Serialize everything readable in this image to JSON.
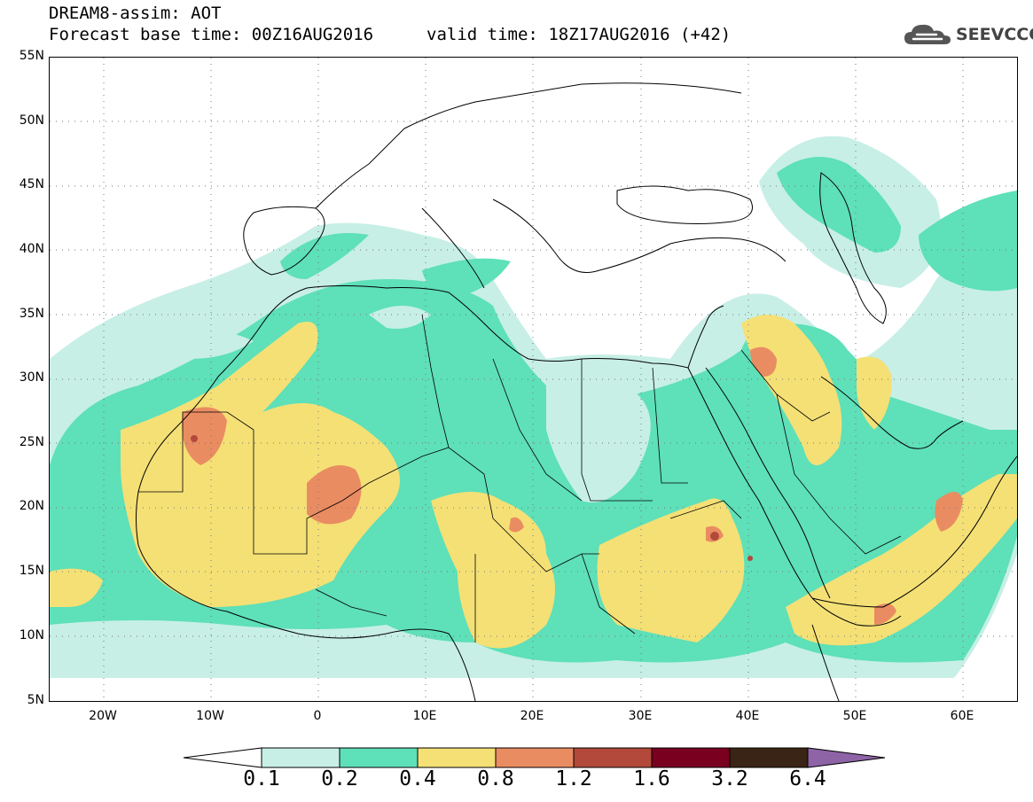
{
  "title": {
    "line1": "DREAM8-assim: AOT",
    "line2_base": "Forecast base time: 00Z16AUG2016",
    "line2_valid": "valid time: 18Z17AUG2016 (+42)"
  },
  "logo": {
    "icon": "cloud-icon",
    "text": "SEEVCCC"
  },
  "axes": {
    "lat_labels": [
      "55N",
      "50N",
      "45N",
      "40N",
      "35N",
      "30N",
      "25N",
      "20N",
      "15N",
      "10N",
      "5N"
    ],
    "lon_labels": [
      "20W",
      "10W",
      "0",
      "10E",
      "20E",
      "30E",
      "40E",
      "50E",
      "60E"
    ],
    "lat_range": [
      5,
      55
    ],
    "lon_range": [
      -25,
      65
    ],
    "grid": "dotted"
  },
  "colorbar": {
    "labels": [
      "0.1",
      "0.2",
      "0.4",
      "0.8",
      "1.2",
      "1.6",
      "3.2",
      "6.4"
    ],
    "colors": [
      "#ffffff",
      "#c7efe6",
      "#5ee0b8",
      "#f5e076",
      "#ea8c62",
      "#b2493a",
      "#7a0020",
      "#3a2415",
      "#8e64a6"
    ]
  },
  "field_colors": {
    "lvl1": "#c7efe6",
    "lvl2": "#5ee0b8",
    "lvl3": "#f5e076",
    "lvl4": "#ea8c62",
    "lvl5": "#b2493a",
    "lvl6": "#7a0020"
  }
}
